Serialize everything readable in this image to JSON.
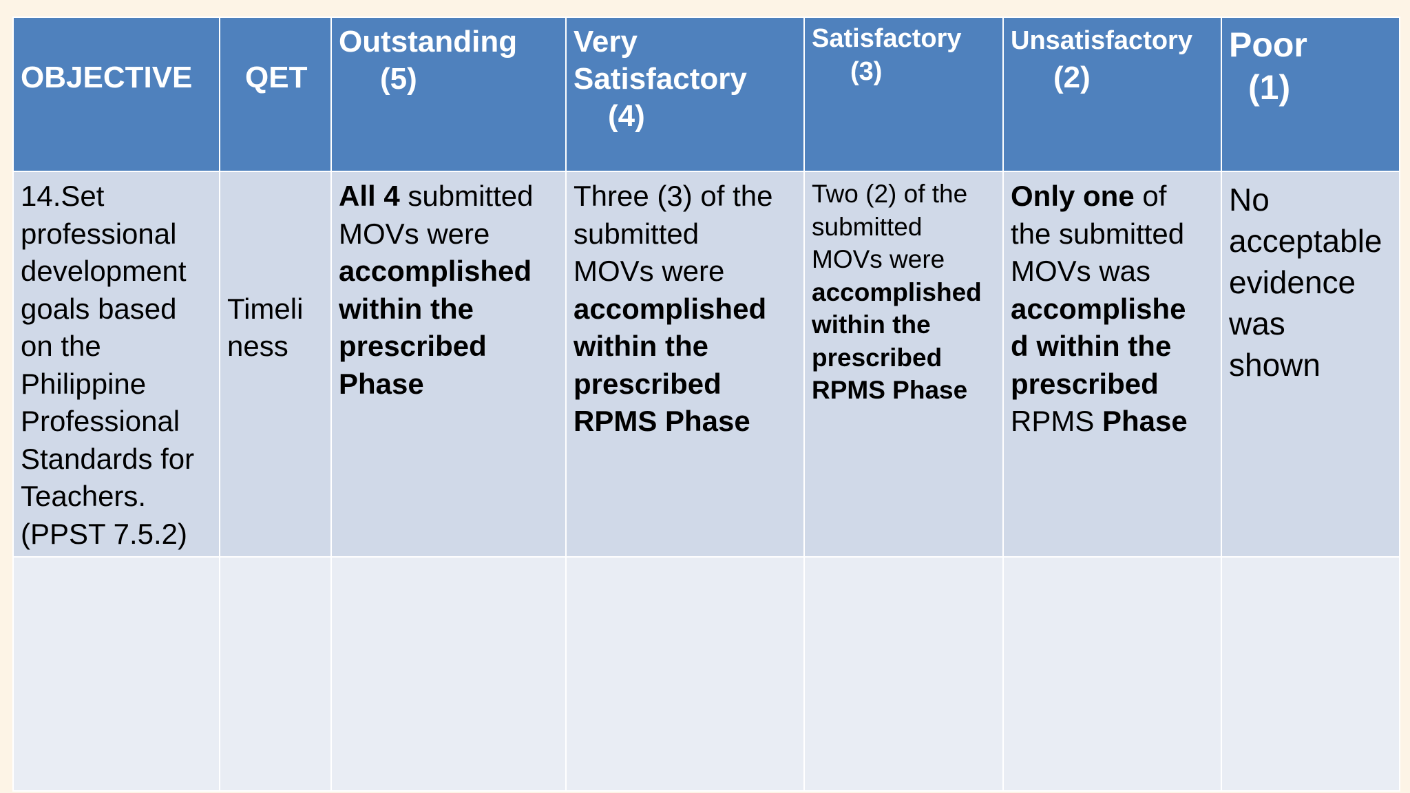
{
  "headers": {
    "objective": "OBJECTIVE",
    "qet": "QET",
    "outstanding": [
      "Outstanding",
      "(5)"
    ],
    "very_satisfactory": [
      "Very",
      "Satisfactory",
      "(4)"
    ],
    "satisfactory": [
      "Satisfactory",
      "(3)"
    ],
    "unsatisfactory": [
      "Unsatisfactory",
      "(2)"
    ],
    "poor": [
      "Poor",
      "(1)"
    ]
  },
  "row": {
    "objective_lines": [
      "14.Set",
      "professional",
      "development",
      "goals based",
      "on the",
      "Philippine",
      "Professional",
      "Standards for",
      "Teachers.",
      "(PPST 7.5.2)"
    ],
    "qet_lines": [
      "Timeli",
      "ness"
    ],
    "outstanding": {
      "b1": "All 4",
      "t1": " submitted",
      "t2": "MOVs were",
      "b2": "accomplished",
      "b3": "within the",
      "b4": "prescribed",
      "b5": "Phase"
    },
    "very_satisfactory": {
      "t1": "Three (3) of the",
      "t2": "submitted",
      "t3": "MOVs were",
      "b1": "accomplished",
      "b2": "within the",
      "b3": "prescribed",
      "b4": "RPMS Phase"
    },
    "satisfactory": {
      "t1": "Two (2) of the",
      "t2": "submitted",
      "t3": "MOVs were",
      "b1": "accomplished",
      "b2": "within the",
      "b3": "prescribed",
      "b4": "RPMS Phase"
    },
    "unsatisfactory": {
      "b1": "Only one",
      "t1": " of",
      "t2": "the submitted",
      "t3": "MOVs was",
      "b2": "accomplishe",
      "b3": "d within the",
      "b4": "prescribed",
      "t4": "RPMS ",
      "b5": "Phase"
    },
    "poor_lines": [
      "No",
      "acceptable",
      "evidence",
      "was",
      "shown"
    ]
  }
}
